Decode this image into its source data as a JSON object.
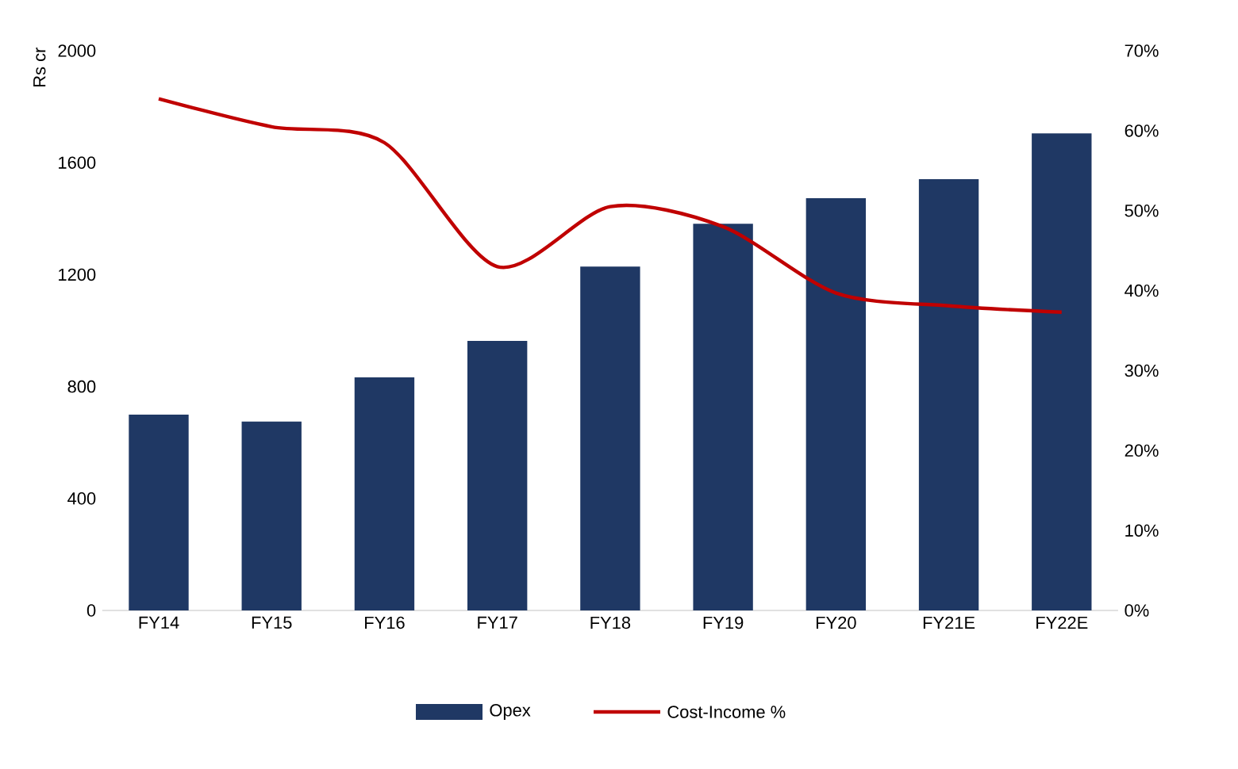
{
  "chart_data": {
    "type": "bar",
    "ylabel": "Rs cr",
    "categories": [
      "FY14",
      "FY15",
      "FY16",
      "FY17",
      "FY18",
      "FY19",
      "FY20",
      "FY21E",
      "FY22E"
    ],
    "series": [
      {
        "name": "Opex",
        "color": "#1f3864",
        "values": [
          700,
          675,
          833,
          963,
          1229,
          1382,
          1473,
          1541,
          1705
        ]
      },
      {
        "name": "Cost-Income %",
        "type": "line",
        "axis": "y2",
        "color": "#c00000",
        "values": [
          64,
          60.5,
          58.5,
          43,
          50.5,
          48,
          39.7,
          38.1,
          37.3
        ]
      }
    ],
    "ylim": [
      0,
      2000
    ],
    "yticks": [
      0,
      400,
      800,
      1200,
      1600,
      2000
    ],
    "y2lim": [
      0,
      70
    ],
    "y2ticks": [
      {
        "value": 0,
        "label": "0%"
      },
      {
        "value": 10,
        "label": "10%"
      },
      {
        "value": 20,
        "label": "20%"
      },
      {
        "value": 30,
        "label": "30%"
      },
      {
        "value": 40,
        "label": "40%"
      },
      {
        "value": 50,
        "label": "50%"
      },
      {
        "value": 60,
        "label": "60%"
      },
      {
        "value": 70,
        "label": "70%"
      }
    ],
    "legend": "bottom",
    "marker": "none",
    "line_style": "solid"
  }
}
